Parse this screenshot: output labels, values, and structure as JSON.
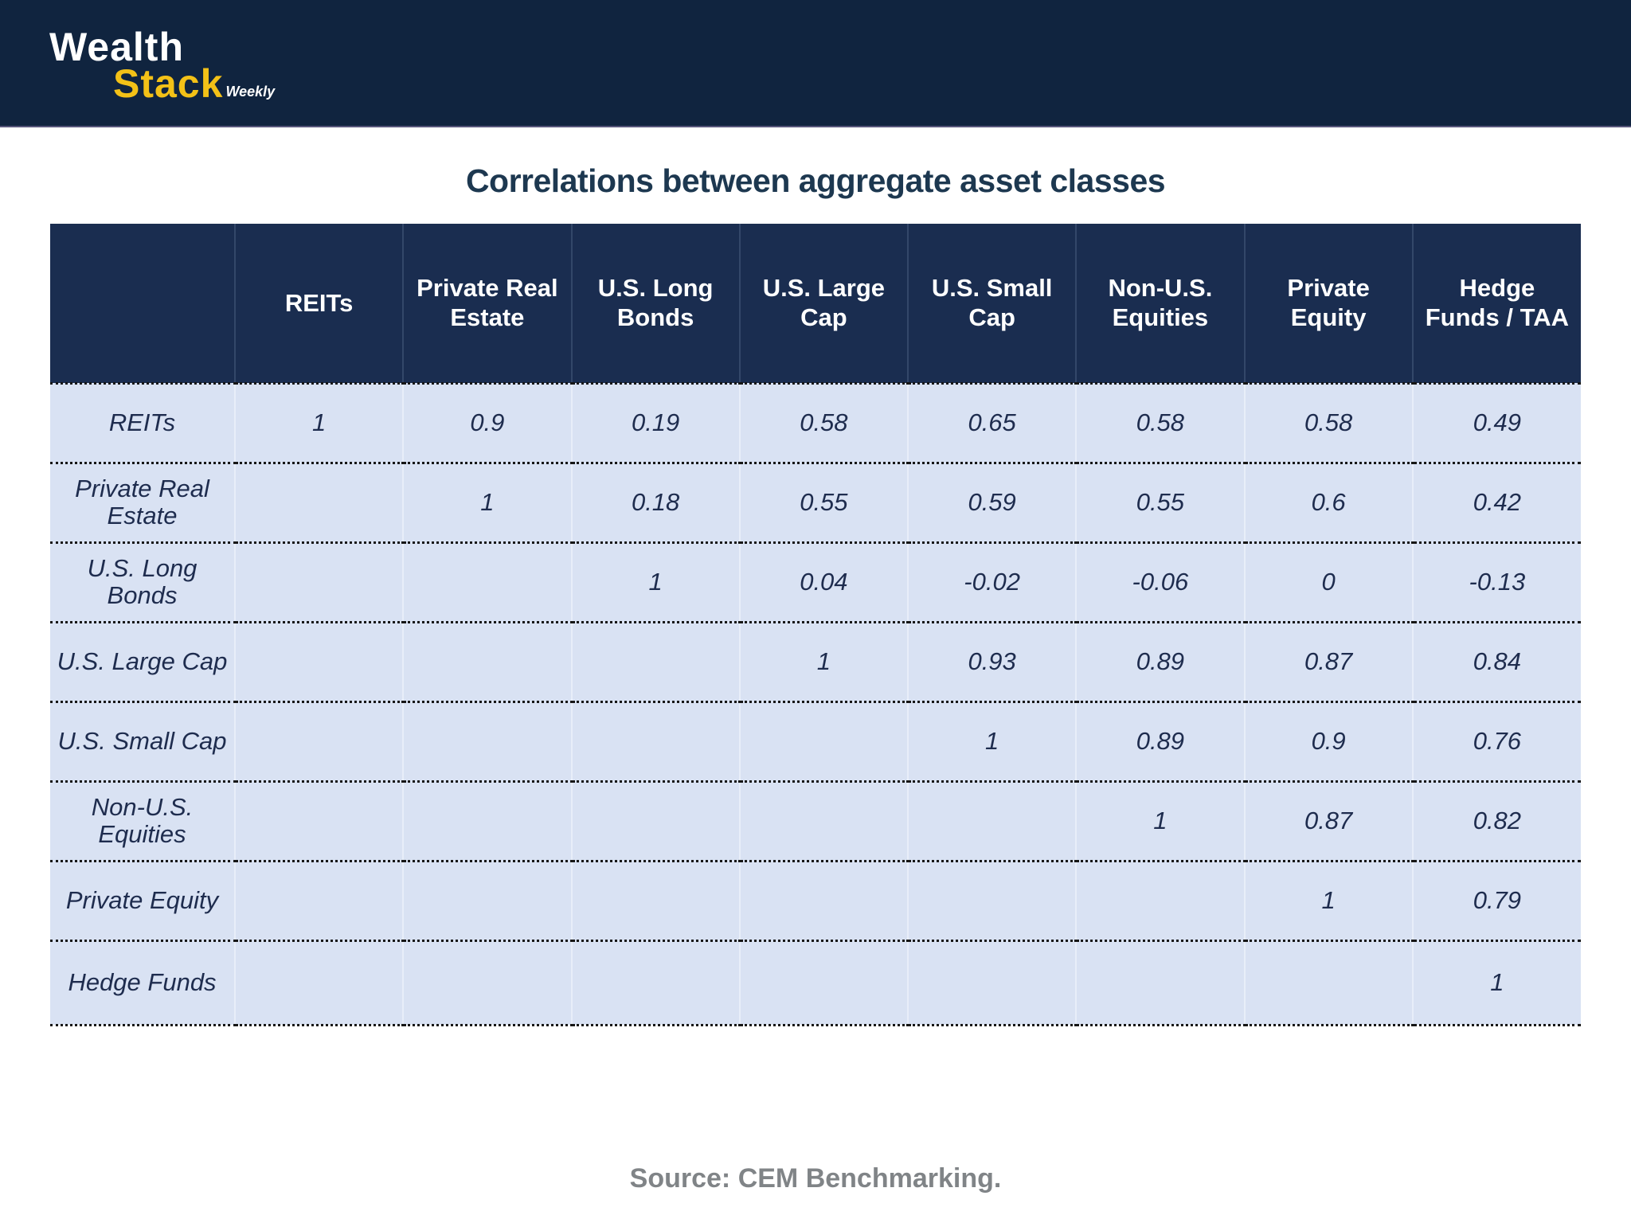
{
  "brand": {
    "line1": "Wealth",
    "line2": "Stack",
    "suffix": "Weekly"
  },
  "title": "Correlations between aggregate asset classes",
  "source": "Source: CEM Benchmarking.",
  "colors": {
    "topbar_navy": "#10243f",
    "header_navy": "#1a2d50",
    "row_light_blue": "#d9e2f3",
    "brand_yellow": "#f3c117",
    "body_text_navy": "#1e2c4e",
    "title_navy": "#1d3850",
    "source_gray": "#808487"
  },
  "chart_data": {
    "type": "table",
    "title": "Correlations between aggregate asset classes",
    "columns": [
      "",
      "REITs",
      "Private Real Estate",
      "U.S. Long Bonds",
      "U.S. Large Cap",
      "U.S. Small Cap",
      "Non-U.S. Equities",
      "Private Equity",
      "Hedge Funds / TAA"
    ],
    "rows": [
      {
        "label": "REITs",
        "values": [
          "1",
          "0.9",
          "0.19",
          "0.58",
          "0.65",
          "0.58",
          "0.58",
          "0.49"
        ]
      },
      {
        "label": "Private Real Estate",
        "values": [
          "",
          "1",
          "0.18",
          "0.55",
          "0.59",
          "0.55",
          "0.6",
          "0.42"
        ]
      },
      {
        "label": "U.S. Long Bonds",
        "values": [
          "",
          "",
          "1",
          "0.04",
          "-0.02",
          "-0.06",
          "0",
          "-0.13"
        ]
      },
      {
        "label": "U.S. Large Cap",
        "values": [
          "",
          "",
          "",
          "1",
          "0.93",
          "0.89",
          "0.87",
          "0.84"
        ]
      },
      {
        "label": "U.S. Small Cap",
        "values": [
          "",
          "",
          "",
          "",
          "1",
          "0.89",
          "0.9",
          "0.76"
        ]
      },
      {
        "label": "Non-U.S. Equities",
        "values": [
          "",
          "",
          "",
          "",
          "",
          "1",
          "0.87",
          "0.82"
        ]
      },
      {
        "label": "Private Equity",
        "values": [
          "",
          "",
          "",
          "",
          "",
          "",
          "1",
          "0.79"
        ]
      },
      {
        "label": "Hedge Funds",
        "values": [
          "",
          "",
          "",
          "",
          "",
          "",
          "",
          "1"
        ]
      }
    ],
    "source": "Source: CEM Benchmarking.",
    "layout": {
      "grid": "dotted-row-separators",
      "legend": "none"
    }
  }
}
